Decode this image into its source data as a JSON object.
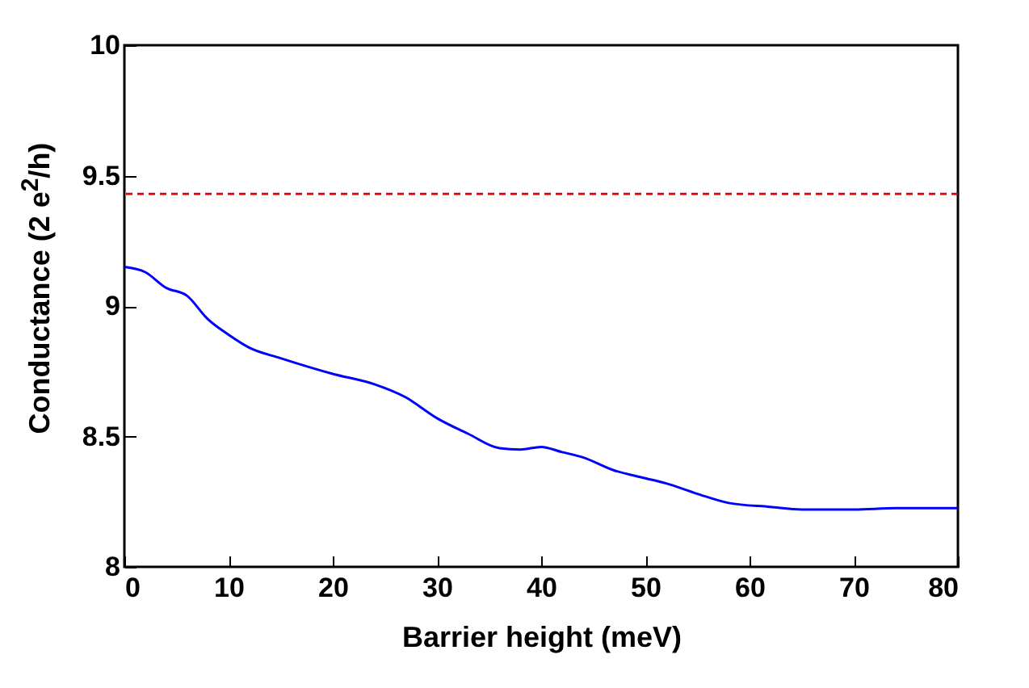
{
  "chart_data": {
    "type": "line",
    "xlabel": "Barrier height (meV)",
    "ylabel": "Conductance (2 e$^{2}$/h)",
    "x": [
      0,
      2,
      4,
      6,
      8,
      10,
      12,
      15,
      20,
      24,
      27,
      30,
      33,
      36,
      38,
      40,
      42,
      44,
      47,
      50,
      52,
      55,
      58,
      62,
      65,
      70,
      74,
      80
    ],
    "series": [
      {
        "color": "#0000ff",
        "values": [
          9.15,
          9.13,
          9.07,
          9.04,
          8.95,
          8.89,
          8.84,
          8.8,
          8.74,
          8.7,
          8.65,
          8.57,
          8.51,
          8.455,
          8.45,
          8.46,
          8.44,
          8.42,
          8.37,
          8.34,
          8.32,
          8.28,
          8.245,
          8.23,
          8.22,
          8.22,
          8.225,
          8.225
        ]
      }
    ],
    "xlim": [
      0,
      80
    ],
    "xticks": [
      0,
      10,
      20,
      30,
      40,
      50,
      60,
      70,
      80
    ],
    "ylim": [
      8,
      10
    ],
    "yticks": [
      8,
      8.5,
      9,
      9.5,
      10
    ],
    "ref_lines": [
      {
        "axis": "y",
        "value": 9.43,
        "color": "#dd0000",
        "line_style": "dashed"
      }
    ],
    "grid": false,
    "line_style": "solid",
    "marker": "none"
  }
}
